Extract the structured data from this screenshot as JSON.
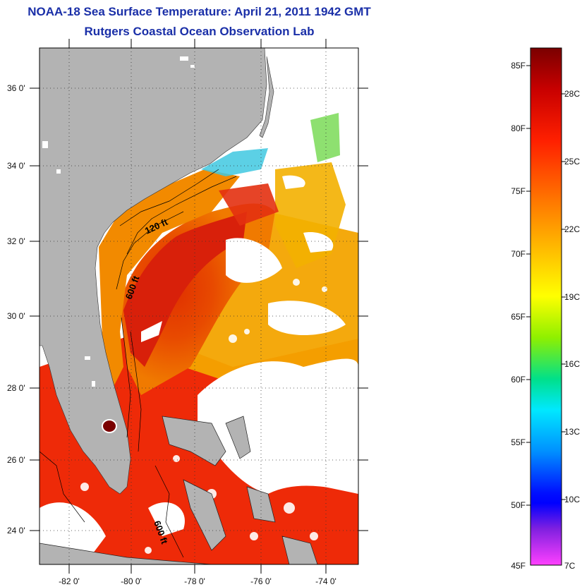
{
  "title": {
    "line1": "NOAA-18 Sea Surface Temperature:  April 21, 2011 1942 GMT",
    "line2": "Rutgers Coastal Ocean Observation Lab"
  },
  "map": {
    "lat_labels": [
      "36 0'",
      "34 0'",
      "32 0'",
      "30 0'",
      "28 0'",
      "26 0'",
      "24 0'"
    ],
    "lon_labels": [
      "-82 0'",
      "-80 0'",
      "-78 0'",
      "-76 0'",
      "-74 0'"
    ],
    "contour_labels": [
      "120 ft",
      "600 ft",
      "600 ft"
    ],
    "colors": {
      "land": "#b3b3b3",
      "cloud": "#ffffff",
      "frame": "#000000"
    }
  },
  "colorbar": {
    "fahrenheit_labels": [
      "85F",
      "80F",
      "75F",
      "70F",
      "65F",
      "60F",
      "55F",
      "50F",
      "45F"
    ],
    "celsius_labels": [
      "28C",
      "25C",
      "22C",
      "19C",
      "16C",
      "13C",
      "10C",
      "7C"
    ],
    "gradient_colors": [
      "#7a0000",
      "#c80000",
      "#ff2000",
      "#ff7a00",
      "#ffc400",
      "#ffff00",
      "#8ff000",
      "#00e08a",
      "#00e8ff",
      "#0090ff",
      "#0010ff",
      "#0000ff",
      "#8020e0",
      "#ff40ff"
    ]
  }
}
